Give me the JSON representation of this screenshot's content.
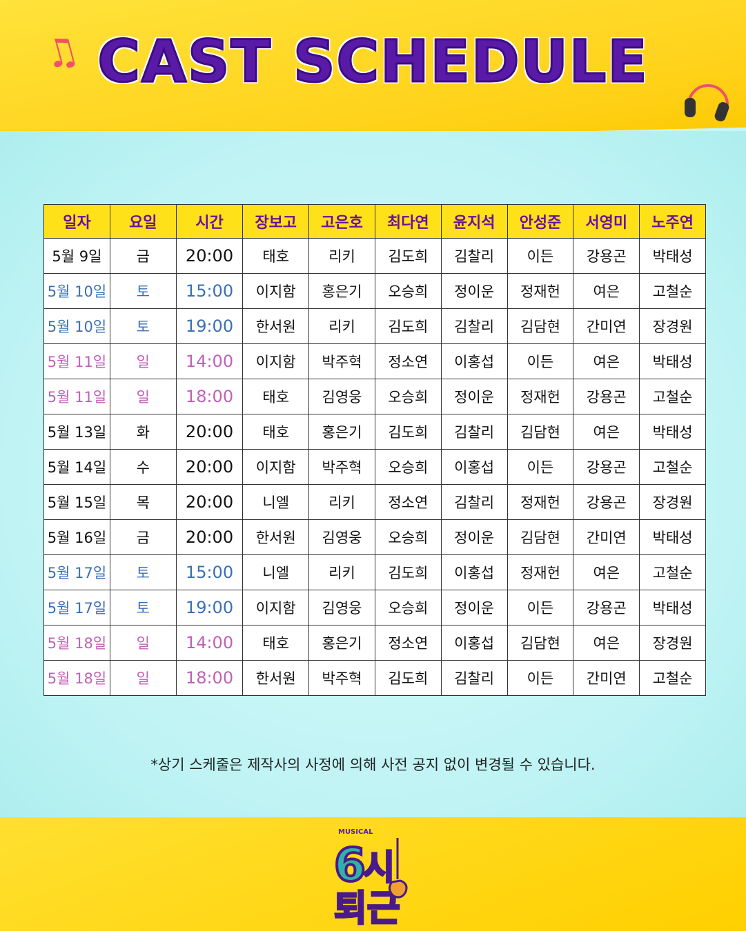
{
  "title": "CAST SCHEDULE",
  "table": {
    "headers": [
      "일자",
      "요일",
      "시간",
      "장보고",
      "고은호",
      "최다연",
      "윤지석",
      "안성준",
      "서영미",
      "노주연"
    ],
    "rows": [
      {
        "type": "weekday",
        "cells": [
          "5월 9일",
          "금",
          "20:00",
          "태호",
          "리키",
          "김도희",
          "김찰리",
          "이든",
          "강용곤",
          "박태성"
        ]
      },
      {
        "type": "sat",
        "cells": [
          "5월 10일",
          "토",
          "15:00",
          "이지함",
          "홍은기",
          "오승희",
          "정이운",
          "정재헌",
          "여은",
          "고철순"
        ]
      },
      {
        "type": "sat",
        "cells": [
          "5월 10일",
          "토",
          "19:00",
          "한서원",
          "리키",
          "김도희",
          "김찰리",
          "김담현",
          "간미연",
          "장경원"
        ]
      },
      {
        "type": "sun",
        "cells": [
          "5월 11일",
          "일",
          "14:00",
          "이지함",
          "박주혁",
          "정소연",
          "이홍섭",
          "이든",
          "여은",
          "박태성"
        ]
      },
      {
        "type": "sun",
        "cells": [
          "5월 11일",
          "일",
          "18:00",
          "태호",
          "김영웅",
          "오승희",
          "정이운",
          "정재헌",
          "강용곤",
          "고철순"
        ]
      },
      {
        "type": "weekday",
        "cells": [
          "5월 13일",
          "화",
          "20:00",
          "태호",
          "홍은기",
          "김도희",
          "김찰리",
          "김담현",
          "여은",
          "박태성"
        ]
      },
      {
        "type": "weekday",
        "cells": [
          "5월 14일",
          "수",
          "20:00",
          "이지함",
          "박주혁",
          "오승희",
          "이홍섭",
          "이든",
          "강용곤",
          "고철순"
        ]
      },
      {
        "type": "weekday",
        "cells": [
          "5월 15일",
          "목",
          "20:00",
          "니엘",
          "리키",
          "정소연",
          "김찰리",
          "정재헌",
          "강용곤",
          "장경원"
        ]
      },
      {
        "type": "weekday",
        "cells": [
          "5월 16일",
          "금",
          "20:00",
          "한서원",
          "김영웅",
          "오승희",
          "정이운",
          "김담현",
          "간미연",
          "박태성"
        ]
      },
      {
        "type": "sat",
        "cells": [
          "5월 17일",
          "토",
          "15:00",
          "니엘",
          "리키",
          "김도희",
          "이홍섭",
          "정재헌",
          "여은",
          "고철순"
        ]
      },
      {
        "type": "sat",
        "cells": [
          "5월 17일",
          "토",
          "19:00",
          "이지함",
          "김영웅",
          "오승희",
          "정이운",
          "이든",
          "강용곤",
          "박태성"
        ]
      },
      {
        "type": "sun",
        "cells": [
          "5월 18일",
          "일",
          "14:00",
          "태호",
          "홍은기",
          "정소연",
          "이홍섭",
          "김담현",
          "여은",
          "장경원"
        ]
      },
      {
        "type": "sun",
        "cells": [
          "5월 18일",
          "일",
          "18:00",
          "한서원",
          "박주혁",
          "김도희",
          "김찰리",
          "이든",
          "간미연",
          "고철순"
        ]
      }
    ]
  },
  "footnote": "*상기 스케줄은 제작사의 사정에 의해 사전 공지 없이 변경될 수 있습니다.",
  "logo": {
    "small_text": "MUSICAL",
    "text": "6시 퇴근"
  },
  "colors": {
    "title": "#5a1aa8",
    "header_bg": "#ffe11a",
    "header_text": "#6a119c",
    "saturday": "#3a6fb5",
    "sunday": "#c060b8"
  },
  "icons": [
    "music-note-icon",
    "headphones-icon"
  ]
}
